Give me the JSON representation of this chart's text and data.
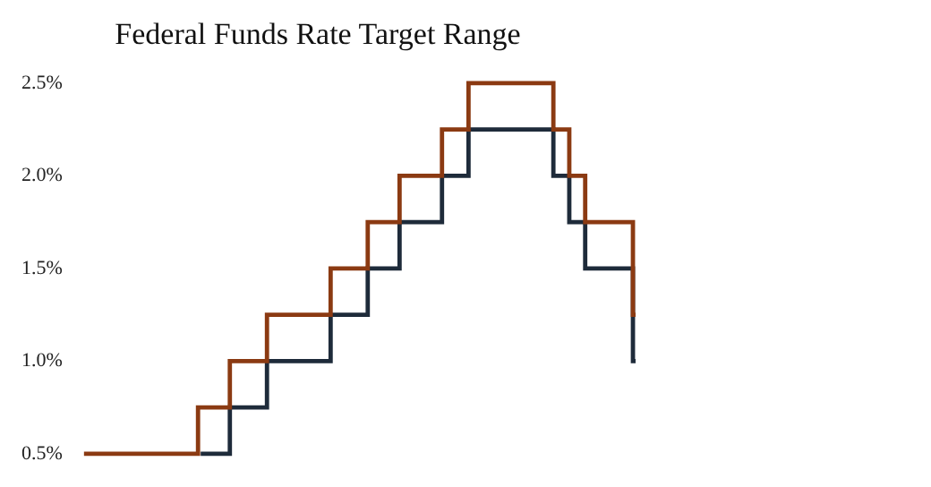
{
  "chart_data": {
    "type": "step",
    "title": "Federal Funds Rate Target Range",
    "categories": [
      null,
      null,
      null,
      null,
      null,
      null,
      null,
      null,
      null,
      null,
      null,
      null,
      null,
      null,
      null,
      null,
      null,
      null,
      null,
      null,
      null,
      null,
      null,
      null,
      null,
      null,
      null,
      null,
      null,
      null,
      null,
      null,
      null,
      null,
      null,
      null,
      null,
      null,
      null,
      null,
      null,
      null,
      null,
      null,
      null,
      null,
      null,
      null,
      null,
      null,
      null,
      null,
      null,
      null,
      null,
      null,
      null,
      null,
      null,
      null,
      null,
      null,
      null,
      null,
      null,
      null,
      null,
      null,
      null,
      null,
      null,
      null,
      null,
      null,
      null,
      null,
      null,
      null,
      null,
      null,
      null,
      null,
      null,
      null,
      null,
      null,
      null,
      null,
      null,
      null,
      null,
      null,
      null,
      null,
      null,
      null,
      null,
      null,
      null,
      null,
      null,
      null,
      null,
      null,
      null
    ],
    "series": [
      {
        "color": "#8b3a12",
        "values": [
          0.5,
          0.5,
          0.5,
          0.5,
          0.5,
          0.5,
          0.5,
          0.5,
          0.5,
          0.5,
          0.5,
          0.5,
          0.5,
          0.5,
          0.5,
          0.5,
          0.5,
          0.5,
          0.5,
          0.5,
          0.5,
          0.5,
          0.75,
          0.75,
          0.75,
          0.75,
          0.75,
          0.75,
          1,
          1,
          1,
          1,
          1,
          1,
          1,
          1.25,
          1.25,
          1.25,
          1.25,
          1.25,
          1.25,
          1.25,
          1.25,
          1.25,
          1.25,
          1.25,
          1.25,
          1.5,
          1.5,
          1.5,
          1.5,
          1.5,
          1.5,
          1.5,
          1.75,
          1.75,
          1.75,
          1.75,
          1.75,
          1.75,
          2,
          2,
          2,
          2,
          2,
          2,
          2,
          2,
          2.25,
          2.25,
          2.25,
          2.25,
          2.25,
          2.5,
          2.5,
          2.5,
          2.5,
          2.5,
          2.5,
          2.5,
          2.5,
          2.5,
          2.5,
          2.5,
          2.5,
          2.5,
          2.5,
          2.5,
          2.5,
          2.25,
          2.25,
          2.25,
          2,
          2,
          2,
          1.75,
          1.75,
          1.75,
          1.75,
          1.75,
          1.75,
          1.75,
          1.75,
          1.75,
          1.25
        ]
      },
      {
        "color": "#1e2b3a",
        "values": [
          null,
          null,
          null,
          null,
          null,
          null,
          null,
          null,
          null,
          null,
          null,
          null,
          null,
          null,
          null,
          null,
          null,
          null,
          null,
          null,
          null,
          null,
          0.5,
          0.5,
          0.5,
          0.5,
          0.5,
          0.5,
          0.75,
          0.75,
          0.75,
          0.75,
          0.75,
          0.75,
          0.75,
          1,
          1,
          1,
          1,
          1,
          1,
          1,
          1,
          1,
          1,
          1,
          1,
          1.25,
          1.25,
          1.25,
          1.25,
          1.25,
          1.25,
          1.25,
          1.5,
          1.5,
          1.5,
          1.5,
          1.5,
          1.5,
          1.75,
          1.75,
          1.75,
          1.75,
          1.75,
          1.75,
          1.75,
          1.75,
          2,
          2,
          2,
          2,
          2,
          2.25,
          2.25,
          2.25,
          2.25,
          2.25,
          2.25,
          2.25,
          2.25,
          2.25,
          2.25,
          2.25,
          2.25,
          2.25,
          2.25,
          2.25,
          2.25,
          2,
          2,
          2,
          1.75,
          1.75,
          1.75,
          1.5,
          1.5,
          1.5,
          1.5,
          1.5,
          1.5,
          1.5,
          1.5,
          1.5,
          1
        ]
      }
    ],
    "ylim": [
      0.5,
      2.5
    ],
    "yticks": [
      {
        "value": 0.5,
        "label": "0.5%"
      },
      {
        "value": 1,
        "label": "1.0%"
      },
      {
        "value": 1.5,
        "label": "1.5%"
      },
      {
        "value": 2,
        "label": "2.0%"
      },
      {
        "value": 2.5,
        "label": "2.5%"
      }
    ],
    "tick_labels": "y",
    "grid": false,
    "legend": false,
    "marker": "none"
  }
}
